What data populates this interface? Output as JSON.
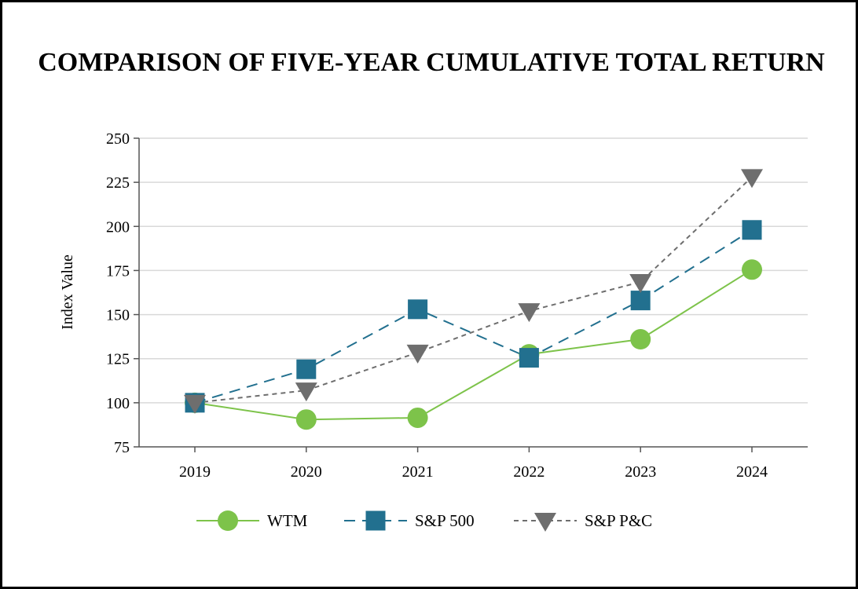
{
  "chart_data": {
    "type": "line",
    "title": "COMPARISON OF FIVE-YEAR CUMULATIVE TOTAL RETURN",
    "xlabel": "",
    "ylabel": "Index Value",
    "categories": [
      "2019",
      "2020",
      "2021",
      "2022",
      "2023",
      "2024"
    ],
    "ylim": [
      75,
      250
    ],
    "yticks": [
      75,
      100,
      125,
      150,
      175,
      200,
      225,
      250
    ],
    "grid": true,
    "legend_position": "bottom",
    "series": [
      {
        "name": "WTM",
        "values": [
          100,
          90.5,
          91.5,
          127.5,
          136,
          175.5
        ],
        "color": "#7dc34a",
        "marker": "circle",
        "dash": "solid"
      },
      {
        "name": "S&P 500",
        "values": [
          100,
          119,
          153,
          125.5,
          158,
          198
        ],
        "color": "#22708f",
        "marker": "square",
        "dash": "long-dash"
      },
      {
        "name": "S&P P&C",
        "values": [
          100,
          107,
          128.5,
          152,
          168.5,
          228
        ],
        "color": "#6e6e6e",
        "marker": "triangle-down",
        "dash": "short-dash"
      }
    ]
  }
}
